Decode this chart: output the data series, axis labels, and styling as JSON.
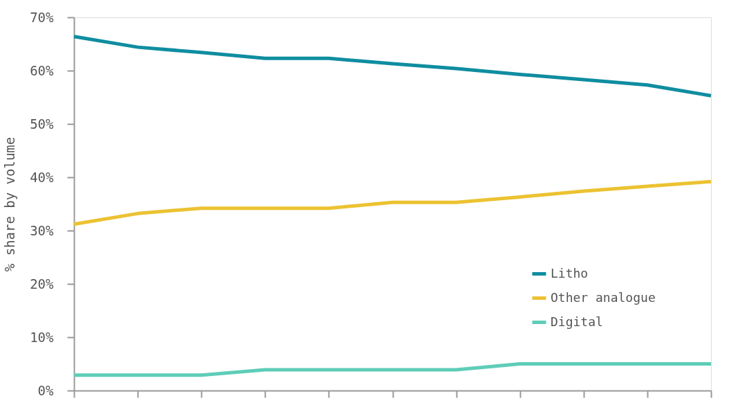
{
  "chart_data": {
    "type": "line",
    "ylabel": "% share by volume",
    "categories": [
      null,
      null,
      null,
      null,
      null,
      null,
      null,
      null,
      null,
      null,
      null
    ],
    "series": [
      {
        "name": "Litho",
        "color": "#0f8da0",
        "values": [
          66.4,
          64.4,
          63.4,
          62.3,
          62.3,
          61.3,
          60.4,
          59.3,
          58.3,
          57.3,
          55.3
        ]
      },
      {
        "name": "Other analogue",
        "color": "#ecc232",
        "values": [
          31.2,
          33.2,
          34.2,
          34.2,
          34.2,
          35.3,
          35.3,
          36.3,
          37.4,
          38.3,
          39.2
        ]
      },
      {
        "name": "Digital",
        "color": "#5ecdb8",
        "values": [
          2.9,
          2.9,
          2.9,
          3.9,
          3.9,
          3.9,
          3.9,
          5.0,
          5.0,
          5.0,
          5.0
        ]
      }
    ],
    "ylim": [
      0,
      70
    ],
    "yticks": [
      {
        "value": 0,
        "label": "0%"
      },
      {
        "value": 10,
        "label": "10%"
      },
      {
        "value": 20,
        "label": "20%"
      },
      {
        "value": 30,
        "label": "30%"
      },
      {
        "value": 40,
        "label": "40%"
      },
      {
        "value": 50,
        "label": "50%"
      },
      {
        "value": 60,
        "label": "60%"
      },
      {
        "value": 70,
        "label": "70%"
      }
    ],
    "legend": "right",
    "grid": false,
    "marker": "none",
    "line_style": "solid"
  }
}
